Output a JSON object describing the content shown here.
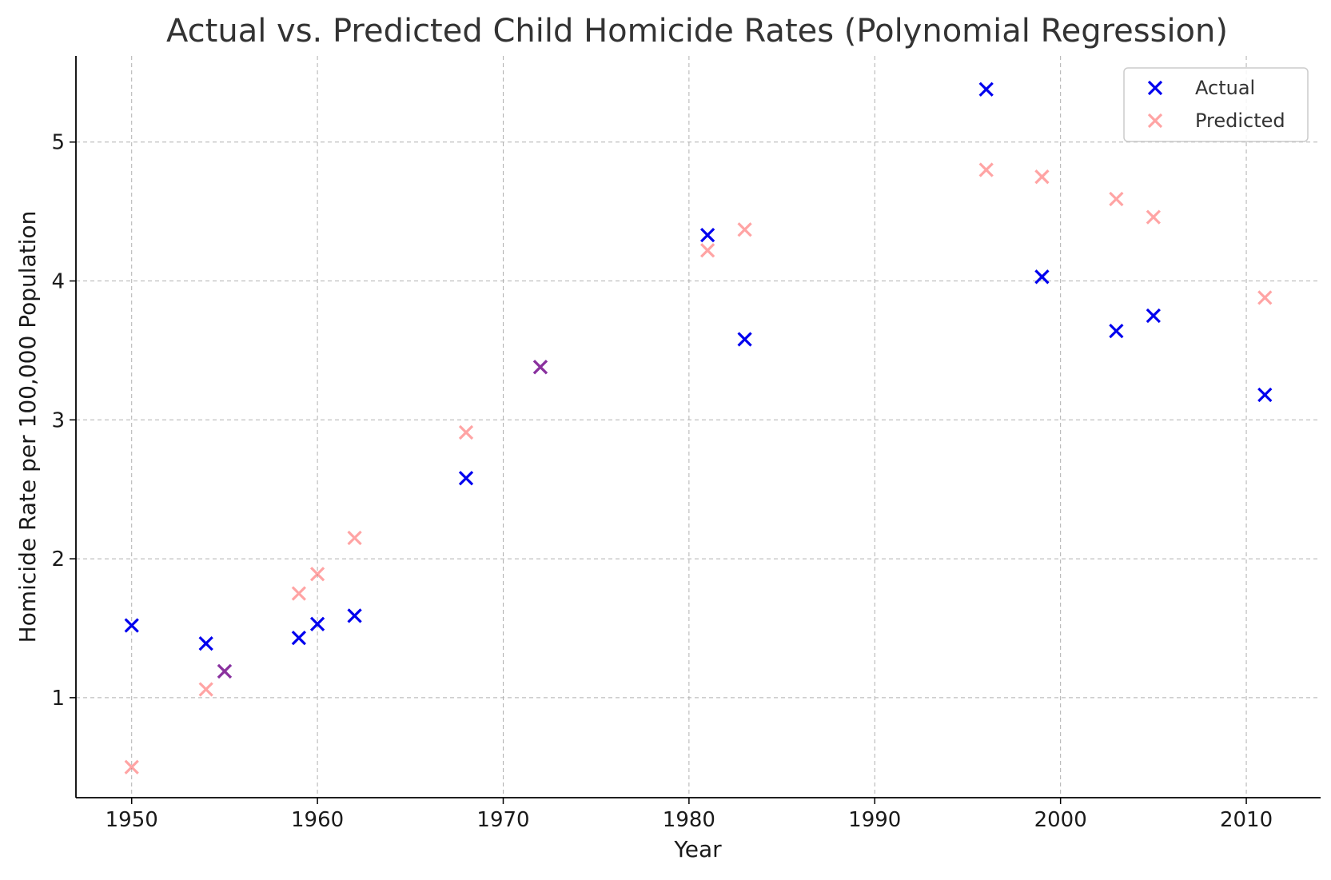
{
  "chart_data": {
    "type": "scatter",
    "title": "Actual vs. Predicted Child Homicide Rates (Polynomial Regression)",
    "xlabel": "Year",
    "ylabel": "Homicide Rate per 100,000 Population",
    "xlim": [
      1947,
      2014
    ],
    "ylim": [
      0.28,
      5.62
    ],
    "xticks": [
      1950,
      1960,
      1970,
      1980,
      1990,
      2000,
      2010
    ],
    "yticks": [
      1,
      2,
      3,
      4,
      5
    ],
    "grid": true,
    "legend_position": "top-right",
    "marker": "x",
    "series": [
      {
        "name": "Actual",
        "color": "#0000ee",
        "opacity": 1,
        "points": [
          [
            1950,
            1.52
          ],
          [
            1954,
            1.39
          ],
          [
            1955,
            1.19
          ],
          [
            1959,
            1.43
          ],
          [
            1960,
            1.53
          ],
          [
            1962,
            1.59
          ],
          [
            1968,
            2.58
          ],
          [
            1972,
            3.38
          ],
          [
            1981,
            4.33
          ],
          [
            1983,
            3.58
          ],
          [
            1996,
            5.38
          ],
          [
            1999,
            4.03
          ],
          [
            2003,
            3.64
          ],
          [
            2005,
            3.75
          ],
          [
            2011,
            3.18
          ]
        ]
      },
      {
        "name": "Predicted",
        "color": "#ff5a5a",
        "opacity": 0.55,
        "points": [
          [
            1950,
            0.5
          ],
          [
            1954,
            1.06
          ],
          [
            1955,
            1.19
          ],
          [
            1959,
            1.75
          ],
          [
            1960,
            1.89
          ],
          [
            1962,
            2.15
          ],
          [
            1968,
            2.91
          ],
          [
            1972,
            3.38
          ],
          [
            1981,
            4.22
          ],
          [
            1983,
            4.37
          ],
          [
            1996,
            4.8
          ],
          [
            1999,
            4.75
          ],
          [
            2003,
            4.59
          ],
          [
            2005,
            4.46
          ],
          [
            2011,
            3.88
          ]
        ]
      }
    ]
  }
}
